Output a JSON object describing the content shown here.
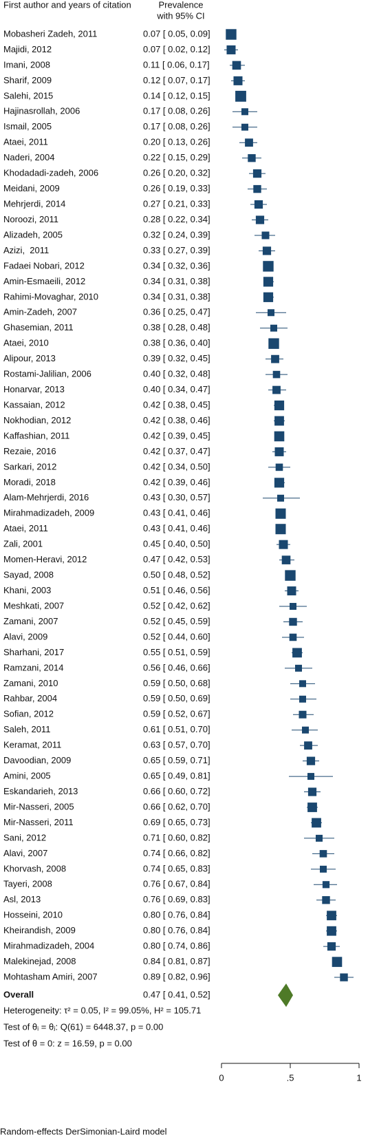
{
  "chart_data": {
    "type": "forest",
    "column_headers": [
      "First author and years of citation",
      "Prevalence",
      "with 95% CI"
    ],
    "categories": [
      "Mobasheri Zadeh, 2011",
      "Majidi, 2012",
      "Imani, 2008",
      "Sharif, 2009",
      "Salehi, 2015",
      "Hajinasrollah, 2006",
      "Ismail, 2005",
      "Ataei, 2011",
      "Naderi, 2004",
      "Khodadadi-zadeh, 2006",
      "Meidani, 2009",
      "Mehrjerdi, 2014",
      "Noroozi, 2011",
      "Alizadeh, 2005",
      "Azizi,  2011",
      "Fadaei Nobari, 2012",
      "Amin-Esmaeili, 2012",
      "Rahimi-Movaghar, 2010",
      "Amin-Zadeh, 2007",
      "Ghasemian, 2011",
      "Ataei, 2010",
      "Alipour, 2013",
      "Rostami-Jalilian, 2006",
      "Honarvar, 2013",
      "Kassaian, 2012",
      "Nokhodian, 2012",
      "Kaffashian, 2011",
      "Rezaie, 2016",
      "Sarkari, 2012",
      "Moradi, 2018",
      "Alam-Mehrjerdi, 2016",
      "Mirahmadizadeh, 2009",
      "Ataei, 2011",
      "Zali, 2001",
      "Momen-Heravi, 2012",
      "Sayad, 2008",
      "Khani, 2003",
      "Meshkati, 2007",
      "Zamani, 2007",
      "Alavi, 2009",
      "Sharhani, 2017",
      "Ramzani, 2014",
      "Zamani, 2010",
      "Rahbar, 2004",
      "Sofian, 2012",
      "Saleh, 2011",
      "Keramat, 2011",
      "Davoodian, 2009",
      "Amini, 2005",
      "Eskandarieh, 2013",
      "Mir-Nasseri, 2005",
      "Mir-Nasseri, 2011",
      "Sani, 2012",
      "Alavi, 2007",
      "Khorvash, 2008",
      "Tayeri, 2008",
      "Asl, 2013",
      "Hosseini, 2010",
      "Kheirandish, 2009",
      "Mirahmadizadeh, 2004",
      "Malekinejad, 2008",
      "Mohtasham Amiri, 2007"
    ],
    "values": [
      0.07,
      0.07,
      0.11,
      0.12,
      0.14,
      0.17,
      0.17,
      0.2,
      0.22,
      0.26,
      0.26,
      0.27,
      0.28,
      0.32,
      0.33,
      0.34,
      0.34,
      0.34,
      0.36,
      0.38,
      0.38,
      0.39,
      0.4,
      0.4,
      0.42,
      0.42,
      0.42,
      0.42,
      0.42,
      0.42,
      0.43,
      0.43,
      0.43,
      0.45,
      0.47,
      0.5,
      0.51,
      0.52,
      0.52,
      0.52,
      0.55,
      0.56,
      0.59,
      0.59,
      0.59,
      0.61,
      0.63,
      0.65,
      0.65,
      0.66,
      0.66,
      0.69,
      0.71,
      0.74,
      0.74,
      0.76,
      0.76,
      0.8,
      0.8,
      0.8,
      0.84,
      0.89
    ],
    "lower": [
      0.05,
      0.02,
      0.06,
      0.07,
      0.12,
      0.08,
      0.08,
      0.13,
      0.15,
      0.2,
      0.19,
      0.21,
      0.22,
      0.24,
      0.27,
      0.32,
      0.31,
      0.31,
      0.25,
      0.28,
      0.36,
      0.32,
      0.32,
      0.34,
      0.38,
      0.38,
      0.39,
      0.37,
      0.34,
      0.39,
      0.3,
      0.41,
      0.41,
      0.4,
      0.42,
      0.48,
      0.46,
      0.42,
      0.45,
      0.44,
      0.51,
      0.46,
      0.5,
      0.5,
      0.52,
      0.51,
      0.57,
      0.59,
      0.49,
      0.6,
      0.62,
      0.65,
      0.6,
      0.66,
      0.65,
      0.67,
      0.69,
      0.76,
      0.76,
      0.74,
      0.81,
      0.82
    ],
    "upper": [
      0.09,
      0.12,
      0.17,
      0.17,
      0.15,
      0.26,
      0.26,
      0.26,
      0.29,
      0.32,
      0.33,
      0.33,
      0.34,
      0.39,
      0.39,
      0.36,
      0.38,
      0.38,
      0.47,
      0.48,
      0.4,
      0.45,
      0.48,
      0.47,
      0.45,
      0.46,
      0.45,
      0.47,
      0.5,
      0.46,
      0.57,
      0.46,
      0.46,
      0.5,
      0.53,
      0.52,
      0.56,
      0.62,
      0.59,
      0.6,
      0.59,
      0.66,
      0.68,
      0.69,
      0.67,
      0.7,
      0.7,
      0.71,
      0.81,
      0.72,
      0.7,
      0.73,
      0.82,
      0.82,
      0.83,
      0.84,
      0.83,
      0.84,
      0.84,
      0.86,
      0.87,
      0.96
    ],
    "value_labels": [
      "0.07 [ 0.05, 0.09]",
      "0.07 [ 0.02, 0.12]",
      "0.11 [ 0.06, 0.17]",
      "0.12 [ 0.07, 0.17]",
      "0.14 [ 0.12, 0.15]",
      "0.17 [ 0.08, 0.26]",
      "0.17 [ 0.08, 0.26]",
      "0.20 [ 0.13, 0.26]",
      "0.22 [ 0.15, 0.29]",
      "0.26 [ 0.20, 0.32]",
      "0.26 [ 0.19, 0.33]",
      "0.27 [ 0.21, 0.33]",
      "0.28 [ 0.22, 0.34]",
      "0.32 [ 0.24, 0.39]",
      "0.33 [ 0.27, 0.39]",
      "0.34 [ 0.32, 0.36]",
      "0.34 [ 0.31, 0.38]",
      "0.34 [ 0.31, 0.38]",
      "0.36 [ 0.25, 0.47]",
      "0.38 [ 0.28, 0.48]",
      "0.38 [ 0.36, 0.40]",
      "0.39 [ 0.32, 0.45]",
      "0.40 [ 0.32, 0.48]",
      "0.40 [ 0.34, 0.47]",
      "0.42 [ 0.38, 0.45]",
      "0.42 [ 0.38, 0.46]",
      "0.42 [ 0.39, 0.45]",
      "0.42 [ 0.37, 0.47]",
      "0.42 [ 0.34, 0.50]",
      "0.42 [ 0.39, 0.46]",
      "0.43 [ 0.30, 0.57]",
      "0.43 [ 0.41, 0.46]",
      "0.43 [ 0.41, 0.46]",
      "0.45 [ 0.40, 0.50]",
      "0.47 [ 0.42, 0.53]",
      "0.50 [ 0.48, 0.52]",
      "0.51 [ 0.46, 0.56]",
      "0.52 [ 0.42, 0.62]",
      "0.52 [ 0.45, 0.59]",
      "0.52 [ 0.44, 0.60]",
      "0.55 [ 0.51, 0.59]",
      "0.56 [ 0.46, 0.66]",
      "0.59 [ 0.50, 0.68]",
      "0.59 [ 0.50, 0.69]",
      "0.59 [ 0.52, 0.67]",
      "0.61 [ 0.51, 0.70]",
      "0.63 [ 0.57, 0.70]",
      "0.65 [ 0.59, 0.71]",
      "0.65 [ 0.49, 0.81]",
      "0.66 [ 0.60, 0.72]",
      "0.66 [ 0.62, 0.70]",
      "0.69 [ 0.65, 0.73]",
      "0.71 [ 0.60, 0.82]",
      "0.74 [ 0.66, 0.82]",
      "0.74 [ 0.65, 0.83]",
      "0.76 [ 0.67, 0.84]",
      "0.76 [ 0.69, 0.83]",
      "0.80 [ 0.76, 0.84]",
      "0.80 [ 0.76, 0.84]",
      "0.80 [ 0.74, 0.86]",
      "0.84 [ 0.81, 0.87]",
      "0.89 [ 0.82, 0.96]"
    ],
    "color": "#1a476f",
    "overall": {
      "label": "Overall",
      "value": 0.47,
      "lower": 0.41,
      "upper": 0.52,
      "value_label": "0.47 [ 0.41, 0.52]",
      "color": "#4e7a27"
    },
    "notes": [
      "Heterogeneity: τ² = 0.05, I² = 99.05%, H² = 105.71",
      "Test of θᵢ = θⱼ: Q(61) = 6448.37, p = 0.00",
      "Test of θ = 0: z = 16.59, p = 0.00"
    ],
    "footer": "Random-effects DerSimonian-Laird model",
    "xlim": [
      0,
      1
    ],
    "xticks": [
      0,
      {
        "value": 0.5,
        "label": ".5"
      },
      1
    ]
  }
}
